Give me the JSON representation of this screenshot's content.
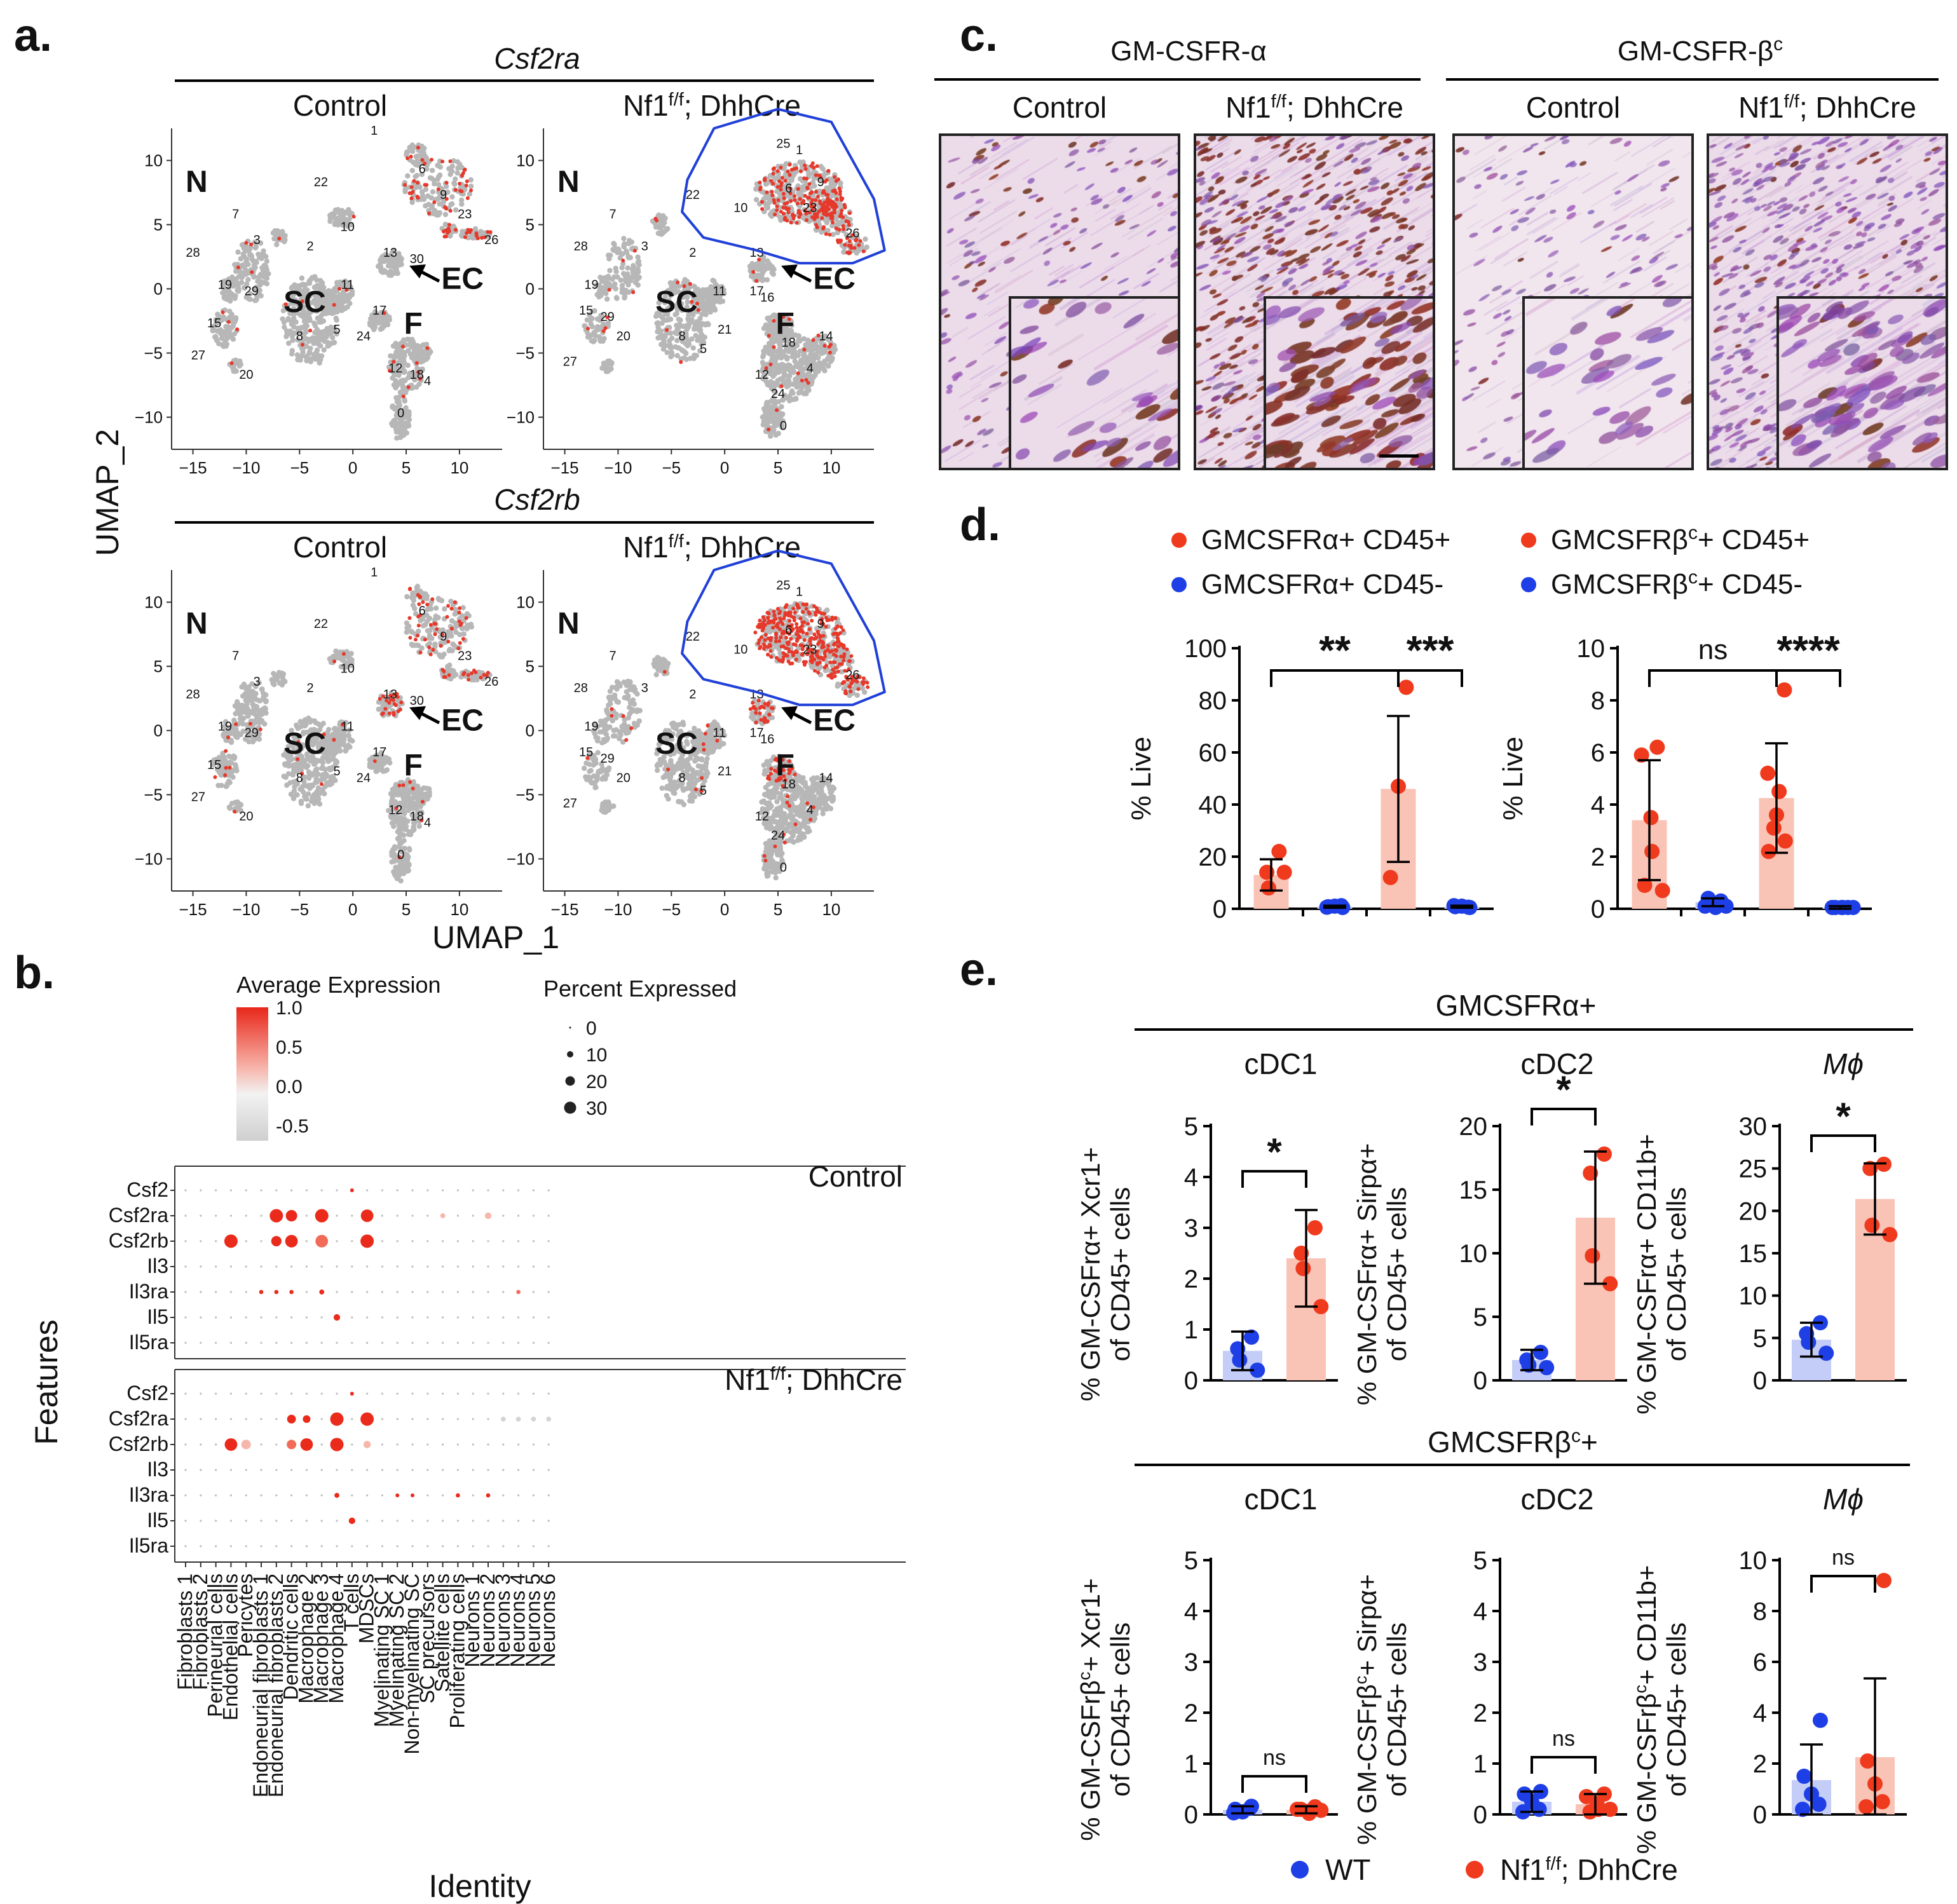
{
  "panel_letters": {
    "a": "a.",
    "b": "b.",
    "c": "c.",
    "d": "d.",
    "e": "e."
  },
  "colors": {
    "wt": "#1f3fe6",
    "nf1": "#f03a1e",
    "wt_bar": "#c3cdf7",
    "nf1_bar": "#f9c3b6",
    "outline": "#2040d8",
    "umap_grey": "#b7b7b7",
    "umap_red": "#e6392b"
  },
  "panel_a": {
    "genes": [
      "Csf2ra",
      "Csf2rb"
    ],
    "conditions": [
      "Control",
      "Nf1f/f; DhhCre"
    ],
    "condition_parts": {
      "base": "Nf1",
      "sup": "f/f",
      "rest": "; DhhCre"
    },
    "xlabel": "UMAP_1",
    "ylabel": "UMAP_2",
    "xticks": [
      "-15",
      "-10",
      "-5",
      "0",
      "5",
      "10"
    ],
    "yticks": [
      "10",
      "5",
      "0",
      "-5",
      "-10"
    ],
    "region_labels": {
      "N": "N",
      "SC": "SC",
      "EC": "EC",
      "F": "F"
    },
    "cluster_labels": [
      "0",
      "1",
      "2",
      "3",
      "4",
      "5",
      "6",
      "7",
      "8",
      "9",
      "10",
      "11",
      "12",
      "13",
      "14",
      "15",
      "16",
      "17",
      "18",
      "19",
      "20",
      "21",
      "22",
      "23",
      "24",
      "25",
      "26",
      "27",
      "28",
      "29",
      "30"
    ]
  },
  "panel_b": {
    "legend_expr_title": "Average Expression",
    "legend_expr_ticks": [
      "1.0",
      "0.5",
      "0.0",
      "-0.5"
    ],
    "legend_pct_title": "Percent Expressed",
    "legend_pct_ticks": [
      "0",
      "10",
      "20",
      "30"
    ],
    "features": [
      "Csf2",
      "Csf2ra",
      "Csf2rb",
      "Il3",
      "Il3ra",
      "Il5",
      "Il5ra"
    ],
    "identities": [
      "Fibroblasts 1",
      "Fibroblasts 2",
      "Perineurial cells",
      "Endothelial cells",
      "Pericytes",
      "Endoneurial fibroblasts 1",
      "Endoneurial fibroblasts 2",
      "Dendritic cells",
      "Macrophage 2",
      "Macrophage 3",
      "Macrophage 4",
      "T cells",
      "MDSCs",
      "Myelinating SC 1",
      "Myelinating SC 2",
      "Non-myelinating SC",
      "SC precursors",
      "Satellite cells",
      "Proliferating cells",
      "Neurons 1",
      "Neurons 2",
      "Neurons 3",
      "Neurons 4",
      "Neurons 5",
      "Neurons 6"
    ],
    "xlabel": "Identity",
    "ylabel": "Features",
    "group_labels": [
      "Control",
      "Nf1f/f; DhhCre"
    ]
  },
  "panel_c": {
    "groups": [
      "GM-CSFR-α",
      "GM-CSFR-βc"
    ],
    "group_parts": [
      {
        "base": "GM-CSFR-α",
        "sup": ""
      },
      {
        "base": "GM-CSFR-β",
        "sup": "c"
      }
    ],
    "conditions": [
      "Control",
      "Nf1f/f; DhhCre",
      "Control",
      "Nf1f/f; DhhCre"
    ]
  },
  "panel_d": {
    "legend": [
      "GMCSFRα+ CD45+",
      "GMCSFRα+ CD45-",
      "GMCSFRβc+ CD45+",
      "GMCSFRβc+ CD45-"
    ],
    "legend_parts": [
      {
        "base": "GMCSFRα+ CD45+",
        "sup": ""
      },
      {
        "base": "GMCSFRα+ CD45-",
        "sup": ""
      },
      {
        "base": "GMCSFRβ",
        "sup": "c",
        "rest": "+ CD45+"
      },
      {
        "base": "GMCSFRβ",
        "sup": "c",
        "rest": "+ CD45-"
      }
    ],
    "ylabel": "% Live"
  },
  "panel_e": {
    "alpha_header": "GMCSFRα+",
    "beta_header_parts": {
      "base": "GMCSFRβ",
      "sup": "c",
      "rest": "+"
    },
    "beta_header": "GMCSFRβc+",
    "subsets": [
      "cDC1",
      "cDC2",
      "Mϕ"
    ],
    "alpha_ylabels": [
      {
        "line1": "% GM-CSFrα+ Xcr1+",
        "line2": "of CD45+ cells"
      },
      {
        "line1": "% GM-CSFrα+ Sirpα+",
        "line2": "of CD45+ cells"
      },
      {
        "line1": "% GM-CSFrα+ CD11b+",
        "line2": "of CD45+ cells"
      }
    ],
    "beta_ylabels": [
      {
        "line1": "% GM-CSFrβc+ Xcr1+",
        "line2": "of CD45+ cells",
        "pre": "% GM-CSFrβ",
        "sup": "c",
        "post": "+ Xcr1+"
      },
      {
        "line1": "% GM-CSFrβc+ Sirpα+",
        "line2": "of CD45+ cells",
        "pre": "% GM-CSFrβ",
        "sup": "c",
        "post": "+ Sirpα+"
      },
      {
        "line1": "% GM-CSFrβc+ CD11b+",
        "line2": "of CD45+ cells",
        "pre": "% GM-CSFrβ",
        "sup": "c",
        "post": "+ CD11b+"
      }
    ],
    "legend": [
      "WT",
      "Nf1f/f; DhhCre"
    ]
  },
  "chart_data": [
    {
      "id": "d-left",
      "type": "bar",
      "ylabel": "% Live",
      "ylim": [
        0,
        100
      ],
      "yticks": [
        0,
        20,
        40,
        60,
        80,
        100
      ],
      "categories": [
        "GMCSFRα+ CD45+ Control",
        "GMCSFRα+ CD45- Control",
        "GMCSFRα+ CD45+ Nf1f/f; DhhCre",
        "GMCSFRα+ CD45- Nf1f/f; DhhCre"
      ],
      "colors": [
        "nf1",
        "wt",
        "nf1",
        "wt"
      ],
      "means": [
        13,
        0.8,
        46,
        0.8
      ],
      "sd": [
        6,
        0.4,
        28,
        0.4
      ],
      "points": [
        [
          22,
          14,
          8,
          14
        ],
        [
          0.5,
          0.8,
          1,
          1.2,
          0.6
        ],
        [
          85,
          47,
          12
        ],
        [
          0.5,
          0.8,
          1,
          0.6,
          1.2
        ]
      ],
      "annotations": [
        {
          "text": "**",
          "from": 0,
          "to": 2
        },
        {
          "text": "***",
          "from": 2,
          "to": 3
        }
      ]
    },
    {
      "id": "d-right",
      "type": "bar",
      "ylabel": "% Live",
      "ylim": [
        0,
        10
      ],
      "yticks": [
        0,
        2,
        4,
        6,
        8,
        10
      ],
      "categories": [
        "GMCSFRβc+ CD45+ Control",
        "GMCSFRβc+ CD45- Control",
        "GMCSFRβc+ CD45+ Nf1f/f; DhhCre",
        "GMCSFRβc+ CD45- Nf1f/f; DhhCre"
      ],
      "colors": [
        "nf1",
        "wt",
        "nf1",
        "wt"
      ],
      "means": [
        3.4,
        0.25,
        4.25,
        0.05
      ],
      "sd": [
        2.3,
        0.15,
        2.1,
        0.05
      ],
      "points": [
        [
          6.2,
          5.9,
          3.5,
          2.2,
          0.9,
          0.7
        ],
        [
          0.3,
          0.1,
          0.2,
          0.05,
          0.4,
          0.1
        ],
        [
          8.4,
          5.2,
          4.5,
          3.6,
          3.1,
          2.6,
          2.2
        ],
        [
          0.05,
          0.05,
          0.05,
          0.05,
          0.05,
          0.05
        ]
      ],
      "annotations": [
        {
          "text": "ns",
          "from": 0,
          "to": 2
        },
        {
          "text": "****",
          "from": 2,
          "to": 3
        }
      ]
    },
    {
      "id": "e-alpha-cdc1",
      "type": "bar",
      "title": "cDC1",
      "ylim": [
        0,
        5
      ],
      "yticks": [
        0,
        1,
        2,
        3,
        4,
        5
      ],
      "categories": [
        "WT",
        "Nf1f/f; DhhCre"
      ],
      "colors": [
        "wt",
        "nf1"
      ],
      "means": [
        0.58,
        2.4
      ],
      "sd": [
        0.38,
        0.95
      ],
      "points": [
        [
          0.85,
          0.62,
          0.4,
          0.2
        ],
        [
          3.0,
          2.5,
          2.2,
          1.45
        ]
      ],
      "annotations": [
        {
          "text": "*",
          "from": 0,
          "to": 1
        }
      ]
    },
    {
      "id": "e-alpha-cdc2",
      "type": "bar",
      "title": "cDC2",
      "ylim": [
        0,
        20
      ],
      "yticks": [
        0,
        5,
        10,
        15,
        20
      ],
      "categories": [
        "WT",
        "Nf1f/f; DhhCre"
      ],
      "colors": [
        "wt",
        "nf1"
      ],
      "means": [
        1.6,
        12.8
      ],
      "sd": [
        0.8,
        5.2
      ],
      "points": [
        [
          2.2,
          1.6,
          1.2,
          1.0
        ],
        [
          17.8,
          16.3,
          9.8,
          7.6
        ]
      ],
      "annotations": [
        {
          "text": "*",
          "from": 0,
          "to": 1
        }
      ]
    },
    {
      "id": "e-alpha-mphi",
      "type": "bar",
      "title": "Mϕ",
      "ylim": [
        0,
        30
      ],
      "yticks": [
        0,
        5,
        10,
        15,
        20,
        25,
        30
      ],
      "categories": [
        "WT",
        "Nf1f/f; DhhCre"
      ],
      "colors": [
        "wt",
        "nf1"
      ],
      "means": [
        4.8,
        21.4
      ],
      "sd": [
        2.0,
        4.2
      ],
      "points": [
        [
          6.8,
          5.5,
          4.5,
          3.2
        ],
        [
          25.5,
          25.0,
          18.3,
          17.2
        ]
      ],
      "annotations": [
        {
          "text": "*",
          "from": 0,
          "to": 1
        }
      ]
    },
    {
      "id": "e-beta-cdc1",
      "type": "bar",
      "title": "cDC1",
      "ylim": [
        0,
        5
      ],
      "yticks": [
        0,
        1,
        2,
        3,
        4,
        5
      ],
      "categories": [
        "WT",
        "Nf1f/f; DhhCre"
      ],
      "colors": [
        "wt",
        "nf1"
      ],
      "means": [
        0.09,
        0.09
      ],
      "sd": [
        0.07,
        0.07
      ],
      "points": [
        [
          0.16,
          0.1,
          0.05,
          0.12,
          0.03
        ],
        [
          0.15,
          0.1,
          0.06,
          0.02,
          0.1,
          0.08
        ]
      ],
      "annotations": [
        {
          "text": "ns",
          "from": 0,
          "to": 1
        }
      ]
    },
    {
      "id": "e-beta-cdc2",
      "type": "bar",
      "title": "cDC2",
      "ylim": [
        0,
        5
      ],
      "yticks": [
        0,
        1,
        2,
        3,
        4,
        5
      ],
      "categories": [
        "WT",
        "Nf1f/f; DhhCre"
      ],
      "colors": [
        "wt",
        "nf1"
      ],
      "means": [
        0.25,
        0.2
      ],
      "sd": [
        0.2,
        0.2
      ],
      "points": [
        [
          0.45,
          0.4,
          0.25,
          0.1,
          0.05
        ],
        [
          0.4,
          0.35,
          0.2,
          0.1,
          0.05,
          0.1
        ]
      ],
      "annotations": [
        {
          "text": "ns",
          "from": 0,
          "to": 1
        }
      ]
    },
    {
      "id": "e-beta-mphi",
      "type": "bar",
      "title": "Mϕ",
      "ylim": [
        0,
        10
      ],
      "yticks": [
        0,
        2,
        4,
        6,
        8,
        10
      ],
      "categories": [
        "WT",
        "Nf1f/f; DhhCre"
      ],
      "colors": [
        "wt",
        "nf1"
      ],
      "means": [
        1.35,
        2.25
      ],
      "sd": [
        1.4,
        3.1
      ],
      "points": [
        [
          3.7,
          1.5,
          0.8,
          0.4,
          0.2
        ],
        [
          9.2,
          2.1,
          1.2,
          0.5,
          0.3
        ]
      ],
      "annotations": [
        {
          "text": "ns",
          "from": 0,
          "to": 1
        }
      ]
    },
    {
      "id": "b-dotplot",
      "type": "scatter",
      "rows": [
        "Csf2",
        "Csf2ra",
        "Csf2rb",
        "Il3",
        "Il3ra",
        "Il5",
        "Il5ra"
      ],
      "cols": [
        "Fibroblasts 1",
        "Fibroblasts 2",
        "Perineurial cells",
        "Endothelial cells",
        "Pericytes",
        "Endoneurial fibroblasts 1",
        "Endoneurial fibroblasts 2",
        "Dendritic cells",
        "Macrophage 2",
        "Macrophage 3",
        "Macrophage 4",
        "T cells",
        "MDSCs",
        "Myelinating SC 1",
        "Myelinating SC 2",
        "Non-myelinating SC",
        "SC precursors",
        "Satellite cells",
        "Proliferating cells",
        "Neurons 1",
        "Neurons 2",
        "Neurons 3",
        "Neurons 4",
        "Neurons 5",
        "Neurons 6"
      ],
      "control": {
        "dots": [
          {
            "row": 0,
            "col": 11,
            "pct": 5,
            "expr": 1.0
          },
          {
            "row": 1,
            "col": 6,
            "pct": 30,
            "expr": 1.0
          },
          {
            "row": 1,
            "col": 7,
            "pct": 25,
            "expr": 1.0
          },
          {
            "row": 1,
            "col": 9,
            "pct": 30,
            "expr": 1.0
          },
          {
            "row": 1,
            "col": 12,
            "pct": 28,
            "expr": 1.0
          },
          {
            "row": 1,
            "col": 17,
            "pct": 8,
            "expr": 0.2
          },
          {
            "row": 1,
            "col": 20,
            "pct": 12,
            "expr": 0.3
          },
          {
            "row": 2,
            "col": 3,
            "pct": 30,
            "expr": 1.0
          },
          {
            "row": 2,
            "col": 6,
            "pct": 22,
            "expr": 1.0
          },
          {
            "row": 2,
            "col": 7,
            "pct": 28,
            "expr": 1.0
          },
          {
            "row": 2,
            "col": 9,
            "pct": 28,
            "expr": 0.6
          },
          {
            "row": 2,
            "col": 12,
            "pct": 30,
            "expr": 1.0
          },
          {
            "row": 4,
            "col": 5,
            "pct": 6,
            "expr": 1.0
          },
          {
            "row": 4,
            "col": 6,
            "pct": 6,
            "expr": 1.0
          },
          {
            "row": 4,
            "col": 7,
            "pct": 6,
            "expr": 1.0
          },
          {
            "row": 4,
            "col": 9,
            "pct": 8,
            "expr": 1.0
          },
          {
            "row": 4,
            "col": 22,
            "pct": 6,
            "expr": 0.5
          },
          {
            "row": 5,
            "col": 10,
            "pct": 12,
            "expr": 1.0
          }
        ]
      },
      "nf1": {
        "dots": [
          {
            "row": 0,
            "col": 11,
            "pct": 5,
            "expr": 1.0
          },
          {
            "row": 1,
            "col": 7,
            "pct": 18,
            "expr": 1.0
          },
          {
            "row": 1,
            "col": 8,
            "pct": 15,
            "expr": 1.0
          },
          {
            "row": 1,
            "col": 10,
            "pct": 30,
            "expr": 1.0
          },
          {
            "row": 1,
            "col": 12,
            "pct": 30,
            "expr": 1.0
          },
          {
            "row": 1,
            "col": 21,
            "pct": 8,
            "expr": -0.3
          },
          {
            "row": 1,
            "col": 22,
            "pct": 8,
            "expr": -0.3
          },
          {
            "row": 1,
            "col": 23,
            "pct": 8,
            "expr": -0.3
          },
          {
            "row": 1,
            "col": 24,
            "pct": 8,
            "expr": -0.3
          },
          {
            "row": 2,
            "col": 3,
            "pct": 28,
            "expr": 1.0
          },
          {
            "row": 2,
            "col": 4,
            "pct": 20,
            "expr": 0.4
          },
          {
            "row": 2,
            "col": 7,
            "pct": 20,
            "expr": 0.6
          },
          {
            "row": 2,
            "col": 8,
            "pct": 28,
            "expr": 1.0
          },
          {
            "row": 2,
            "col": 10,
            "pct": 30,
            "expr": 1.0
          },
          {
            "row": 2,
            "col": 12,
            "pct": 14,
            "expr": 0.4
          },
          {
            "row": 4,
            "col": 10,
            "pct": 8,
            "expr": 1.0
          },
          {
            "row": 4,
            "col": 14,
            "pct": 5,
            "expr": 1.0
          },
          {
            "row": 4,
            "col": 15,
            "pct": 5,
            "expr": 1.0
          },
          {
            "row": 4,
            "col": 18,
            "pct": 6,
            "expr": 1.0
          },
          {
            "row": 4,
            "col": 20,
            "pct": 6,
            "expr": 1.0
          },
          {
            "row": 5,
            "col": 11,
            "pct": 12,
            "expr": 1.0
          }
        ]
      }
    }
  ]
}
